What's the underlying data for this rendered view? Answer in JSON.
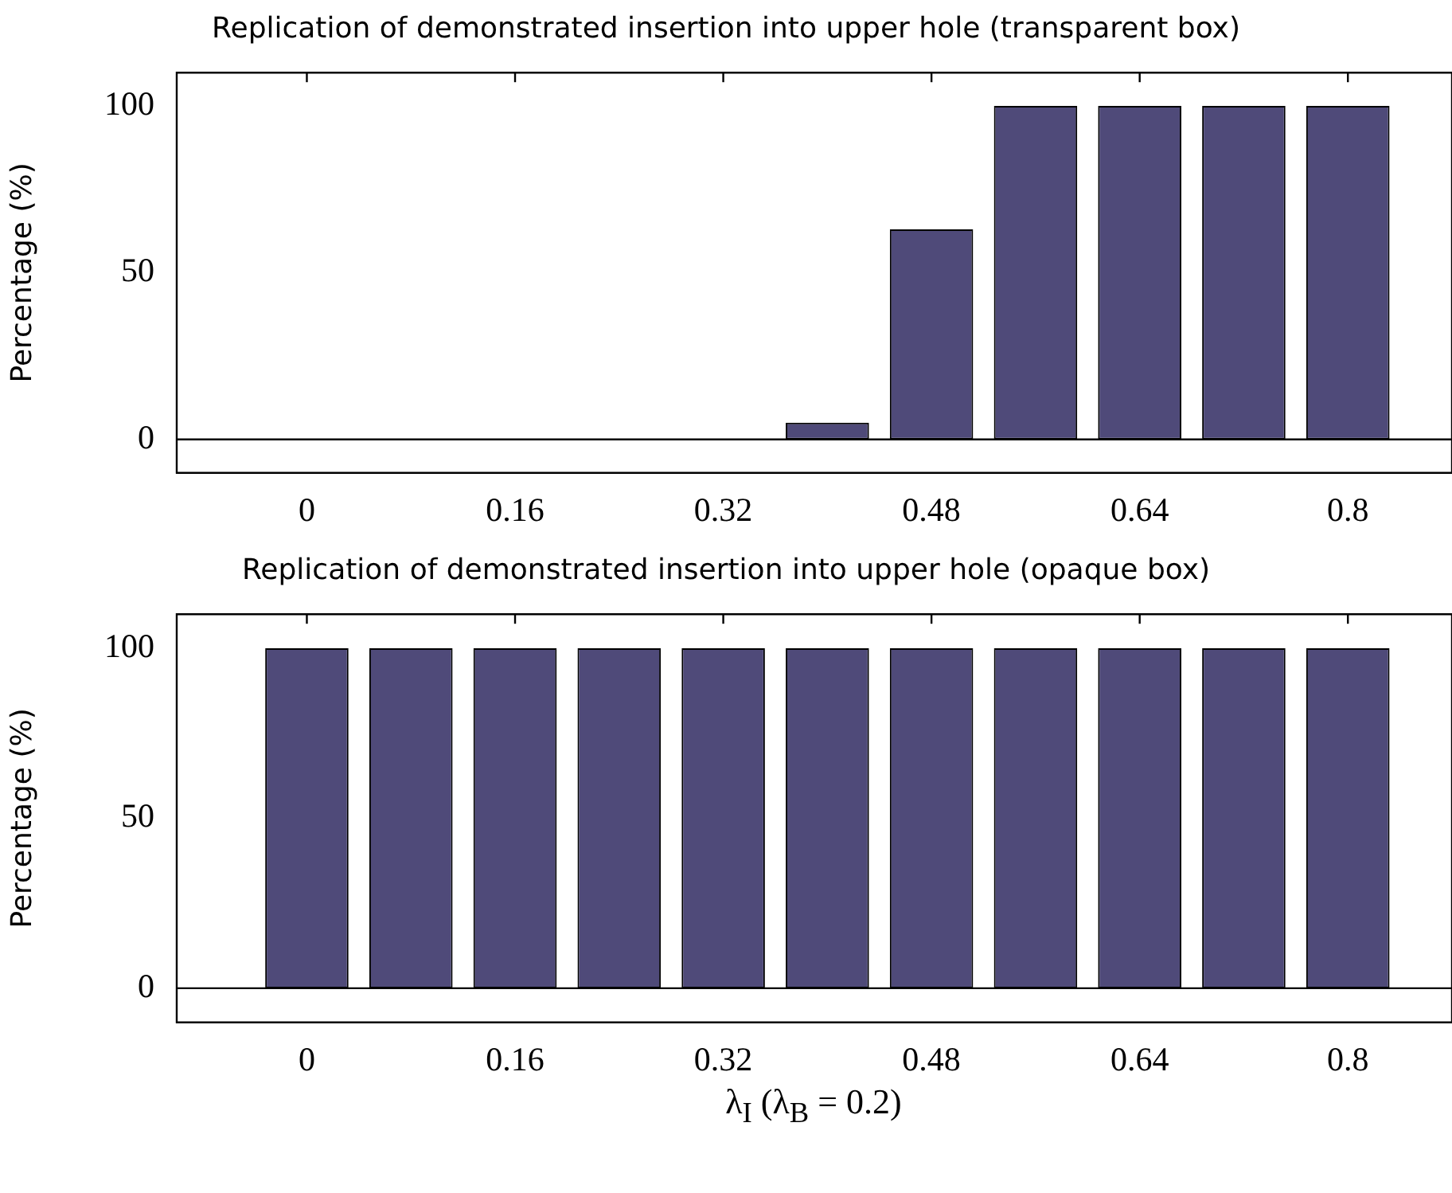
{
  "chart_data": [
    {
      "type": "bar",
      "title": "Replication of demonstrated insertion into upper hole (transparent box)",
      "ylabel": "Percentage (%)",
      "x": [
        0,
        0.08,
        0.16,
        0.24,
        0.32,
        0.4,
        0.48,
        0.56,
        0.64,
        0.72,
        0.8
      ],
      "values": [
        0,
        0,
        0,
        0,
        0,
        5,
        63,
        100,
        100,
        100,
        100
      ],
      "ref_lines": [
        {
          "axis": "y",
          "value": 0
        }
      ],
      "color": "#4f4a79",
      "xlim": [
        -0.1,
        0.88
      ],
      "xticks": [
        0,
        0.16,
        0.32,
        0.48,
        0.64,
        0.8
      ],
      "ylim": [
        -10,
        110
      ],
      "yticks": [
        0,
        50,
        100
      ],
      "grid": false,
      "legend": false
    },
    {
      "type": "bar",
      "title": "Replication of demonstrated insertion into upper hole (opaque box)",
      "ylabel": "Percentage (%)",
      "xlabel": "λ$_{I}$ (λ$_{B}$ = 0.2)",
      "x": [
        0,
        0.08,
        0.16,
        0.24,
        0.32,
        0.4,
        0.48,
        0.56,
        0.64,
        0.72,
        0.8
      ],
      "values": [
        100,
        100,
        100,
        100,
        100,
        100,
        100,
        100,
        100,
        100,
        100
      ],
      "ref_lines": [
        {
          "axis": "y",
          "value": 0
        }
      ],
      "color": "#4f4a79",
      "xlim": [
        -0.1,
        0.88
      ],
      "xticks": [
        0,
        0.16,
        0.32,
        0.48,
        0.64,
        0.8
      ],
      "ylim": [
        -10,
        110
      ],
      "yticks": [
        0,
        50,
        100
      ],
      "grid": false,
      "legend": false
    }
  ]
}
